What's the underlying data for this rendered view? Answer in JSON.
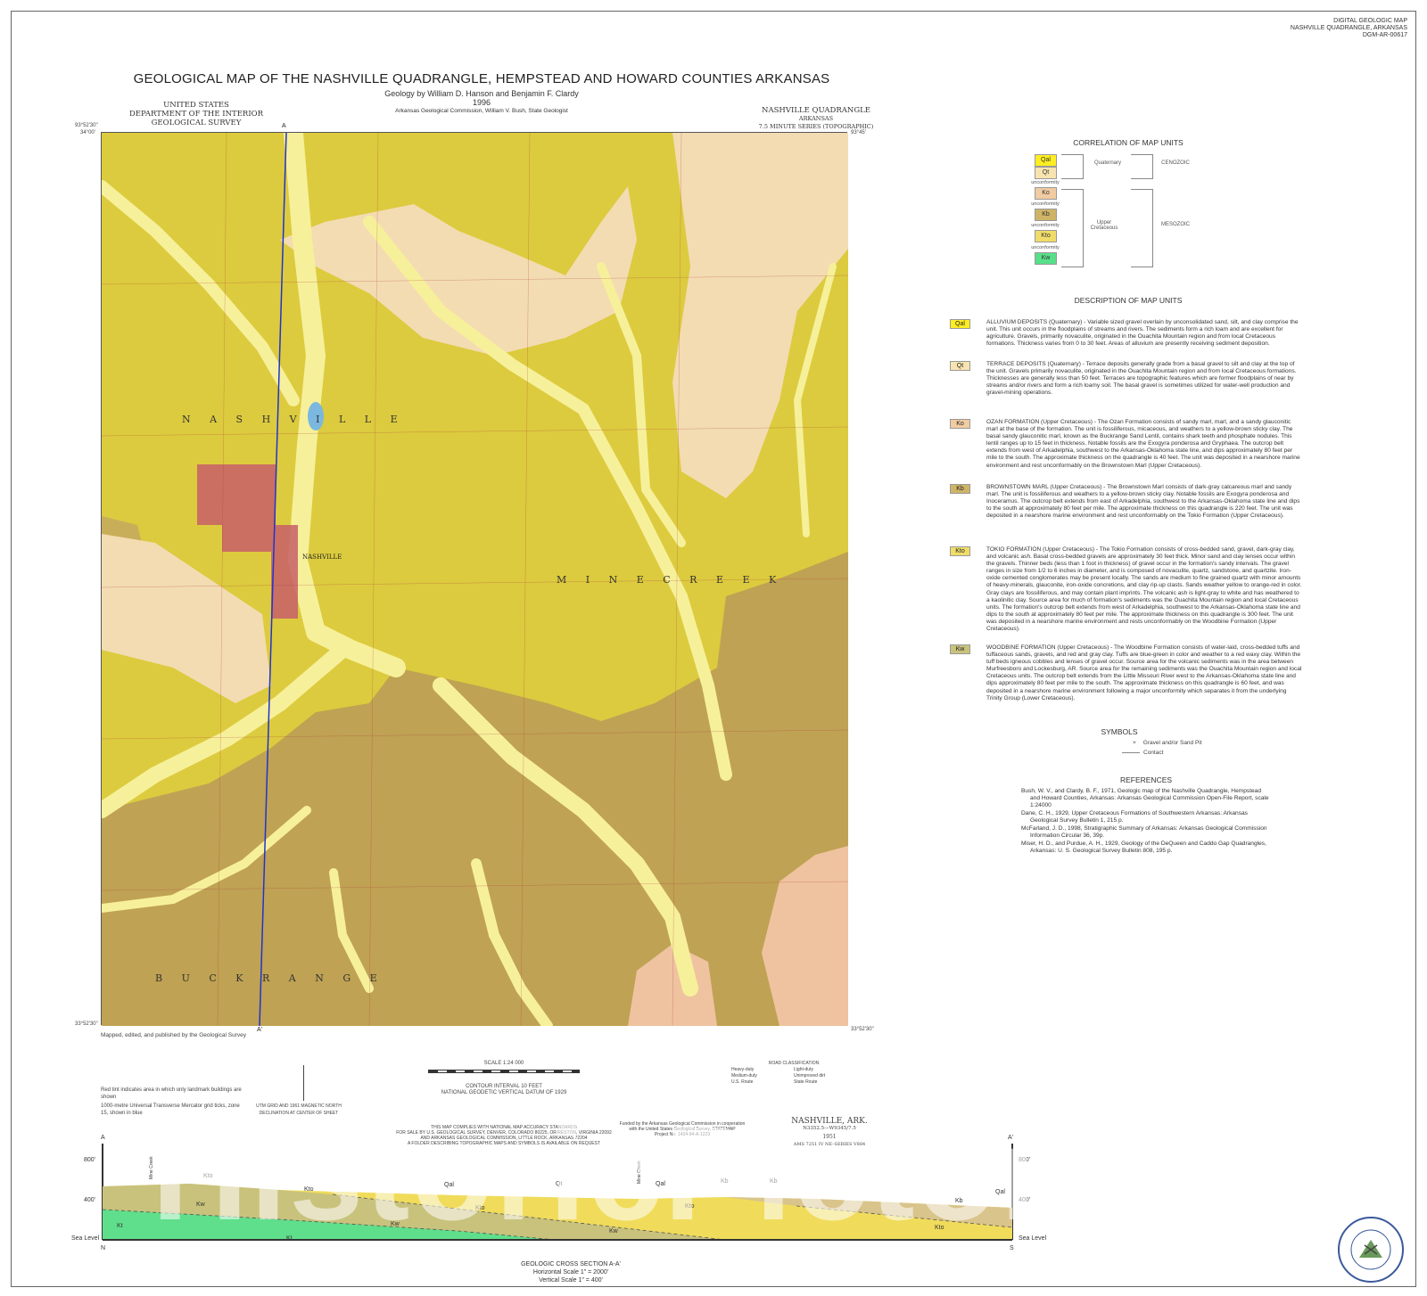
{
  "header_right": [
    "DIGITAL GEOLOGIC MAP",
    "NASHVILLE QUADRANGLE, ARKANSAS",
    "DGM-AR-00617"
  ],
  "title": "GEOLOGICAL MAP OF THE NASHVILLE QUADRANGLE, HEMPSTEAD AND HOWARD COUNTIES ARKANSAS",
  "authors": "Geology by William D. Hanson and Benjamin F. Clardy",
  "year": "1996",
  "agency": "Arkansas Geological Commission, William V. Bush, State Geologist",
  "usgs": [
    "UNITED STATES",
    "DEPARTMENT OF THE INTERIOR",
    "GEOLOGICAL SURVEY"
  ],
  "quad": {
    "name": "NASHVILLE QUADRANGLE",
    "state": "ARKANSAS",
    "series": "7.5 MINUTE SERIES (TOPOGRAPHIC)"
  },
  "map": {
    "place_labels": {
      "nashville_area": "N A S H V I L L E",
      "nashville_town": "NASHVILLE",
      "mine_creek": "M I N E   C R E E K",
      "buck_range": "B U C K   R A N G E"
    },
    "section_line": {
      "start": "A",
      "end": "A'"
    },
    "corners": {
      "nw_lat": "34°00'",
      "nw_lon": "93°52'30\"",
      "ne_lon": "93°45'",
      "se_lat": "33°52'30\"",
      "sw_lat": "33°52'30\""
    },
    "colors": {
      "Qal": "#f7f09a",
      "Qt": "#f3dcb2",
      "Ko": "#efc3a0",
      "Kb": "#bfa253",
      "Kto": "#dccb3e",
      "Kw": "#c9c27c",
      "Kt": "#5fdf8b",
      "town": "#c75f68",
      "section_line": "#2233cc"
    }
  },
  "correlation": {
    "title": "CORRELATION OF MAP UNITS",
    "units": [
      {
        "code": "Qal",
        "color": "#ffee22"
      },
      {
        "code": "Qt",
        "color": "#f8e4b0"
      },
      {
        "code": "Ko",
        "color": "#f1cba2"
      },
      {
        "code": "Kb",
        "color": "#cfb467"
      },
      {
        "code": "Kto",
        "color": "#f0dc6a"
      },
      {
        "code": "Kw",
        "color": "#58df8a"
      }
    ],
    "unconformity": "unconformity",
    "quaternary": "Quaternary",
    "upper_cretaceous": "Upper Cretaceous",
    "cenozoic": "CENOZOIC",
    "mesozoic": "MESOZOIC"
  },
  "description": {
    "title": "DESCRIPTION OF MAP UNITS",
    "units": [
      {
        "code": "Qal",
        "color": "#ffee22",
        "text": "ALLUVIUM DEPOSITS (Quaternary) - Variable sized gravel overlain by unconsolidated sand, silt, and clay comprise the unit. This unit occurs in the floodplains of streams and rivers. The sediments form a rich loam and are excellent for agriculture. Gravels, primarily novaculite, originated in the Ouachita Mountain region and from local Cretaceous formations. Thickness varies from 0 to 30 feet. Areas of alluvium are presently receiving sediment deposition."
      },
      {
        "code": "Qt",
        "color": "#f8e4b0",
        "text": "TERRACE DEPOSITS (Quaternary) - Terrace deposits generally grade from a basal gravel to silt and clay at the top of the unit. Gravels primarily novaculite, originated in the Ouachita Mountain region and from local Cretaceous formations. Thicknesses are generally less than 50 feet. Terraces are topographic features which are former floodplains of near by streams and/or rivers and form a rich loamy soil. The basal gravel is sometimes utilized for water-well production and gravel-mining operations."
      },
      {
        "code": "Ko",
        "color": "#f1cba2",
        "text": "OZAN FORMATION (Upper Cretaceous) - The Ozan Formation consists of sandy marl, marl, and a sandy glauconitic marl at the base of the formation. The unit is fossiliferous, micaceous, and weathers to a yellow-brown sticky clay. The basal sandy glauconitic marl, known as the Buckrange Sand Lentil, contains shark teeth and phosphate nodules. This lentil ranges up to 15 feet in thickness. Notable fossils are the Exogyra ponderosa and Gryphaea. The outcrop belt extends from west of Arkadelphia, southwest to the Arkansas-Oklahoma state line, and dips approximately 80 feet per mile to the south. The approximate thickness on the quadrangle is 40 feet. The unit was deposited in a nearshore marine environment and rest unconformably on the Brownstown Marl (Upper Cretaceous)."
      },
      {
        "code": "Kb",
        "color": "#cfb467",
        "text": "BROWNSTOWN MARL (Upper Cretaceous) - The Brownstown Marl consists of dark-gray calcareous marl and sandy marl. The unit is fossiliferous and weathers to a yellow-brown sticky clay. Notable fossils are Exogyra ponderosa and Inoceramus. The outcrop belt extends from east of Arkadelphia, southwest to the Arkansas-Oklahoma state line and dips to the south at approximately 80 feet per mile. The approximate thickness on this quadrangle is 220 feet. The unit was deposited in a nearshore marine environment and rest unconformably on the Tokio Formation (Upper Cretaceous)."
      },
      {
        "code": "Kto",
        "color": "#f0dc6a",
        "text": "TOKIO FORMATION (Upper Cretaceous) - The Tokio Formation consists of cross-bedded sand, gravel, dark-gray clay, and volcanic ash. Basal cross-bedded gravels are approximately 30 feet thick. Minor sand and clay lenses occur within the gravels. Thinner beds (less than 1 foot in thickness) of gravel occur in the formation's sandy intervals. The gravel ranges in size from 1/2 to 6 inches in diameter, and is composed of novaculite, quartz, sandstone, and quartzite. Iron-oxide cemented conglomerates may be present locally. The sands are medium to fine grained quartz with minor amounts of heavy-minerals, glauconite, iron-oxide concretions, and clay rip-up clasts. Sands weather yellow to orange-red in color. Gray clays are fossiliferous, and may contain plant imprints. The volcanic ash is light-gray to white and has weathered to a kaolinitic clay. Source area for much of formation's sediments was the Ouachita Mountain region and local Cretaceous units. The formation's outcrop belt extends from west of Arkadelphia, southwest to the Arkansas-Oklahoma state line and dips to the south at approximately 80 feet per mile. The approximate thickness on this quadrangle is 300 feet. The unit was deposited in a nearshore marine environment and rests unconformably on the Woodbine Formation (Upper Cretaceous)."
      },
      {
        "code": "Kw",
        "color": "#c9c27c",
        "text": "WOODBINE FORMATION (Upper Cretaceous) - The Woodbine Formation consists of water-laid, cross-bedded tuffs and tuffaceous sands, gravels, and red and gray clay. Tuffs are blue-green in color and weather to a red waxy clay. Within the tuff beds igneous cobbles and lenses of gravel occur. Source area for the volcanic sediments was in the area between Murfreesboro and Lockesburg, AR. Source area for the remaining sediments was the Ouachita Mountain region and local Cretaceous units. The outcrop belt extends from the Little Missouri River west to the Arkansas-Oklahoma state line and dips approximately 80 feet per mile to the south. The approximate thickness on this quadrangle is 60 feet, and was deposited in a nearshore marine environment following a major unconformity which separates it from the underlying Trinity Group (Lower Cretaceous)."
      }
    ]
  },
  "symbols": {
    "title": "SYMBOLS",
    "items": [
      {
        "glyph": "x",
        "label": "Gravel and/or Sand Pit"
      },
      {
        "glyph": "line",
        "label": "Contact"
      }
    ]
  },
  "references": {
    "title": "REFERENCES",
    "items": [
      "Bush, W. V., and Clardy, B. F., 1971, Geologic map of the Nashville Quadrangle, Hempstead and Howard Counties, Arkansas: Arkansas Geological Commission Open-File Report, scale 1:24000",
      "Dane, C. H., 1929, Upper Cretaceous Formations of Southwestern Arkansas: Arkansas Geological Survey Bulletin 1, 215 p.",
      "McFarland, J. D., 1998, Stratigraphic Summary of Arkansas: Arkansas Geological Commission Information Circular 36, 39p.",
      "Miser, H. D., and Purdue, A. H., 1929, Geology of the DeQueen and Caddo Gap Quadrangles, Arkansas: U. S. Geological Survey Bulletin 808, 195 p."
    ]
  },
  "footer": {
    "mapped_by": "Mapped, edited, and published by the Geological Survey",
    "utm_note": "1000-metre Universal Transverse Mercator grid ticks, zone 15, shown in blue",
    "red_tint": "Red tint indicates area in which only landmark buildings are shown",
    "declination": "UTM GRID AND 1961 MAGNETIC NORTH DECLINATION AT CENTER OF SHEET",
    "scale": "SCALE 1:24 000",
    "contour": "CONTOUR INTERVAL 10 FEET",
    "datum": "NATIONAL GEODETIC VERTICAL DATUM OF 1929",
    "accuracy": [
      "THIS MAP COMPLIES WITH NATIONAL MAP ACCURACY STANDARDS",
      "FOR SALE BY U.S. GEOLOGICAL SURVEY, DENVER, COLORADO 80225, OR RESTON, VIRGINIA 22092",
      "AND ARKANSAS GEOLOGICAL COMMISSION, LITTLE ROCK, ARKANSAS 72204",
      "A FOLDER DESCRIBING TOPOGRAPHIC MAPS AND SYMBOLS IS AVAILABLE ON REQUEST"
    ],
    "funded": [
      "Funded by the Arkansas Geological Commission in cooperation",
      "with the United States Geological Survey, STATEMAP",
      "Project No. 1434-94-A-1223"
    ],
    "road_class": {
      "title": "ROAD CLASSIFICATION",
      "items": [
        "Heavy-duty",
        "Light-duty",
        "Medium-duty",
        "Unimproved dirt",
        "U.S. Route",
        "State Route"
      ]
    },
    "sheet": {
      "name": "NASHVILLE, ARK.",
      "code": "N3352.5—W9345/7.5",
      "year": "1951",
      "ams": "AMS 7251 IV NE–SERIES V884"
    }
  },
  "cross_section": {
    "title": "GEOLOGIC CROSS SECTION A-A'",
    "h_scale": "Horizontal Scale 1\" = 2000'",
    "v_scale": "Vertical Scale 1\" = 400'",
    "start": "A",
    "end": "A'",
    "north": "N",
    "south": "S",
    "ticks": [
      "800'",
      "400'",
      "Sea Level"
    ],
    "unit_labels": [
      "Kto",
      "Kw",
      "Kt",
      "Kto",
      "Kw",
      "Kt",
      "Qal",
      "Kto",
      "Qt",
      "Qal",
      "Kb",
      "Kb",
      "Kto",
      "Kw",
      "Kto",
      "Qal",
      "Kb"
    ],
    "features": [
      "Mine Creek",
      "Mine Creek"
    ]
  },
  "watermark": "HistoricPictoric ©",
  "logo": "ARKANSAS GEOLOGICAL COMMISSION"
}
